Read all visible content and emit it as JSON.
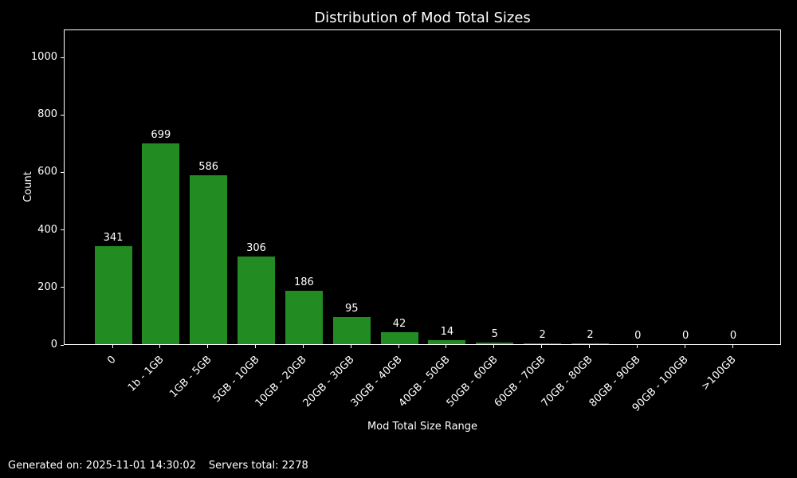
{
  "title": "Distribution of Mod Total Sizes",
  "footer": {
    "generated": "Generated on: 2025-11-01 14:30:02",
    "servers": "Servers total: 2278"
  },
  "colors": {
    "background": "#000000",
    "text": "#ffffff",
    "bar": "#228B22",
    "spine": "#ffffff"
  },
  "chart_data": {
    "type": "bar",
    "title": "Distribution of Mod Total Sizes",
    "xlabel": "Mod Total Size Range",
    "ylabel": "Count",
    "categories": [
      "0",
      "1b - 1GB",
      "1GB - 5GB",
      "5GB - 10GB",
      "10GB - 20GB",
      "20GB - 30GB",
      "30GB - 40GB",
      "40GB - 50GB",
      "50GB - 60GB",
      "60GB - 70GB",
      "70GB - 80GB",
      "80GB - 90GB",
      "90GB - 100GB",
      ">100GB"
    ],
    "values": [
      341,
      699,
      586,
      306,
      186,
      95,
      42,
      14,
      5,
      2,
      2,
      0,
      0,
      0
    ],
    "yticks": [
      0,
      200,
      400,
      600,
      800,
      1000
    ],
    "ylim": [
      0,
      1097
    ],
    "grid": false,
    "legend": "none",
    "bar_color": "#228B22",
    "value_labels_shown": true,
    "xtick_rotation_deg": 45
  }
}
